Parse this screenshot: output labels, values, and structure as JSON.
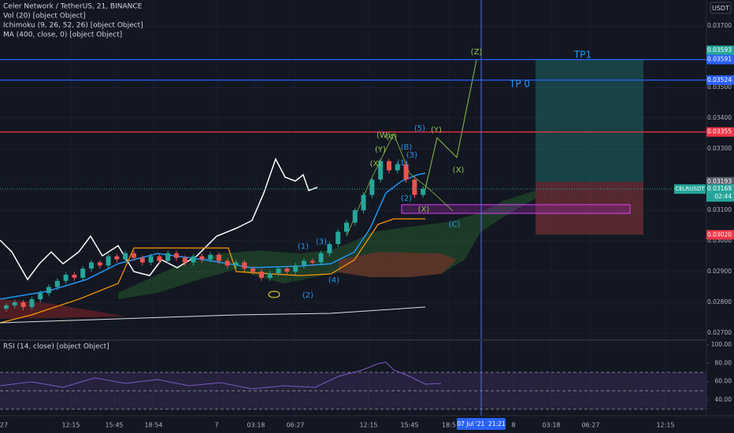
{
  "header": {
    "symbol": "Celer Network / TetherUS, 21, BINANCE",
    "indicators": [
      "Vol (20) [object Object]",
      "Ichimoku (9, 26, 52, 26) [object Object]",
      "MA (400, close, 0) [object Object]"
    ]
  },
  "currency": "USDT",
  "price_axis": {
    "range": [
      0.02677,
      0.03785
    ],
    "ticks": [
      {
        "value": 0.037,
        "label": "0.03700"
      },
      {
        "value": 0.035,
        "label": "0.03500"
      },
      {
        "value": 0.034,
        "label": "0.03400"
      },
      {
        "value": 0.033,
        "label": "0.03300"
      },
      {
        "value": 0.031,
        "label": "0.03100"
      },
      {
        "value": 0.03,
        "label": "0.03000"
      },
      {
        "value": 0.029,
        "label": "0.02900"
      },
      {
        "value": 0.028,
        "label": "0.02800"
      },
      {
        "value": 0.027,
        "label": "0.02700"
      }
    ]
  },
  "price_lines": [
    {
      "value": 0.03593,
      "label": "0.03593",
      "color": "#26a69a",
      "line": false
    },
    {
      "value": 0.03591,
      "label": "0.03591",
      "color": "#2962ff",
      "line": true
    },
    {
      "value": 0.03524,
      "label": "0.03524",
      "color": "#2962ff",
      "line": true
    },
    {
      "value": 0.03355,
      "label": "0.03355",
      "color": "#f23645",
      "line": true
    },
    {
      "value": 0.03193,
      "label": "0.03193",
      "color": "#5d606b",
      "line": false
    },
    {
      "value": 0.0302,
      "label": "0.03020",
      "color": "#f23645",
      "line": false
    }
  ],
  "last_price": {
    "symbol": "CELRUSDT",
    "value": 0.03169,
    "label": "0.03169",
    "countdown": "02:44",
    "color": "#26a69a"
  },
  "candles": [
    [
      0.0278,
      0.02798,
      0.0277,
      0.0279
    ],
    [
      0.0279,
      0.02808,
      0.0278,
      0.028
    ],
    [
      0.028,
      0.02808,
      0.02775,
      0.02785
    ],
    [
      0.02785,
      0.02818,
      0.02775,
      0.0281
    ],
    [
      0.0281,
      0.02838,
      0.028,
      0.0283
    ],
    [
      0.0283,
      0.02858,
      0.0282,
      0.0285
    ],
    [
      0.0285,
      0.02878,
      0.0284,
      0.0287
    ],
    [
      0.0287,
      0.02898,
      0.0286,
      0.0289
    ],
    [
      0.0289,
      0.02898,
      0.0287,
      0.0288
    ],
    [
      0.0288,
      0.02918,
      0.0287,
      0.0291
    ],
    [
      0.0291,
      0.02938,
      0.029,
      0.0293
    ],
    [
      0.0293,
      0.02938,
      0.0291,
      0.0292
    ],
    [
      0.0292,
      0.02958,
      0.0291,
      0.0295
    ],
    [
      0.0295,
      0.02958,
      0.0293,
      0.0294
    ],
    [
      0.0294,
      0.02968,
      0.0293,
      0.0296
    ],
    [
      0.0296,
      0.02968,
      0.02935,
      0.02945
    ],
    [
      0.02945,
      0.02953,
      0.0292,
      0.0293
    ],
    [
      0.0293,
      0.02958,
      0.0292,
      0.0295
    ],
    [
      0.0295,
      0.02958,
      0.02925,
      0.02935
    ],
    [
      0.02935,
      0.02968,
      0.02925,
      0.0296
    ],
    [
      0.0296,
      0.02968,
      0.02935,
      0.02945
    ],
    [
      0.02945,
      0.02953,
      0.0292,
      0.0293
    ],
    [
      0.0293,
      0.02958,
      0.0292,
      0.0295
    ],
    [
      0.0295,
      0.02958,
      0.0293,
      0.0294
    ],
    [
      0.0294,
      0.02963,
      0.0293,
      0.02955
    ],
    [
      0.02955,
      0.02963,
      0.02925,
      0.02935
    ],
    [
      0.02935,
      0.02943,
      0.0291,
      0.0292
    ],
    [
      0.0292,
      0.02938,
      0.0291,
      0.0293
    ],
    [
      0.0293,
      0.02938,
      0.029,
      0.0291
    ],
    [
      0.0291,
      0.02918,
      0.0289,
      0.029
    ],
    [
      0.029,
      0.02908,
      0.0287,
      0.0288
    ],
    [
      0.0288,
      0.02903,
      0.0287,
      0.02895
    ],
    [
      0.02895,
      0.02918,
      0.02885,
      0.0291
    ],
    [
      0.0291,
      0.02918,
      0.0289,
      0.029
    ],
    [
      0.029,
      0.02928,
      0.0289,
      0.0292
    ],
    [
      0.0292,
      0.02943,
      0.0291,
      0.02935
    ],
    [
      0.02935,
      0.02943,
      0.0292,
      0.0293
    ],
    [
      0.0293,
      0.02968,
      0.0292,
      0.0296
    ],
    [
      0.0296,
      0.02998,
      0.0295,
      0.0299
    ],
    [
      0.0299,
      0.03038,
      0.0298,
      0.0303
    ],
    [
      0.0303,
      0.03068,
      0.0302,
      0.0306
    ],
    [
      0.0306,
      0.03108,
      0.0305,
      0.031
    ],
    [
      0.031,
      0.03158,
      0.0309,
      0.0315
    ],
    [
      0.0315,
      0.03208,
      0.0314,
      0.032
    ],
    [
      0.032,
      0.03268,
      0.0319,
      0.0326
    ],
    [
      0.0326,
      0.03268,
      0.0322,
      0.0323
    ],
    [
      0.0323,
      0.03258,
      0.0322,
      0.0325
    ],
    [
      0.0325,
      0.03258,
      0.0319,
      0.032
    ],
    [
      0.032,
      0.03208,
      0.0314,
      0.0315
    ],
    [
      0.0315,
      0.03178,
      0.0314,
      0.0317
    ]
  ],
  "up_color": "#26a69a",
  "down_color": "#ef5350",
  "annotations": [
    "TP1",
    "TP 0",
    "(Z)",
    "(5)",
    "(Y)",
    "(B)",
    "(3)",
    "(X)",
    "(C)",
    "(W)",
    "(Y)",
    "(4)",
    "(X)",
    "(1)",
    "(2)",
    "(X)",
    "(1)",
    "(3)",
    "(4)",
    "(2)"
  ],
  "rsi": {
    "label": "RSI (14, close) [object Object]",
    "range": [
      22.9,
      105.1
    ],
    "ticks": [
      {
        "value": 100,
        "label": "100.00"
      },
      {
        "value": 80,
        "label": "80.00"
      },
      {
        "value": 60,
        "label": "60.00"
      },
      {
        "value": 40,
        "label": "40.00"
      }
    ],
    "levels": [
      70,
      50,
      30
    ]
  },
  "time_axis": {
    "labels": [
      "27",
      "12:15",
      "15:45",
      "18:54",
      "7",
      "03:18",
      "06:27",
      "12:15",
      "15:45",
      "18:5",
      "8",
      "03:18",
      "06:27",
      "12:15"
    ],
    "cursor": "07 Jul '21  21:21"
  }
}
